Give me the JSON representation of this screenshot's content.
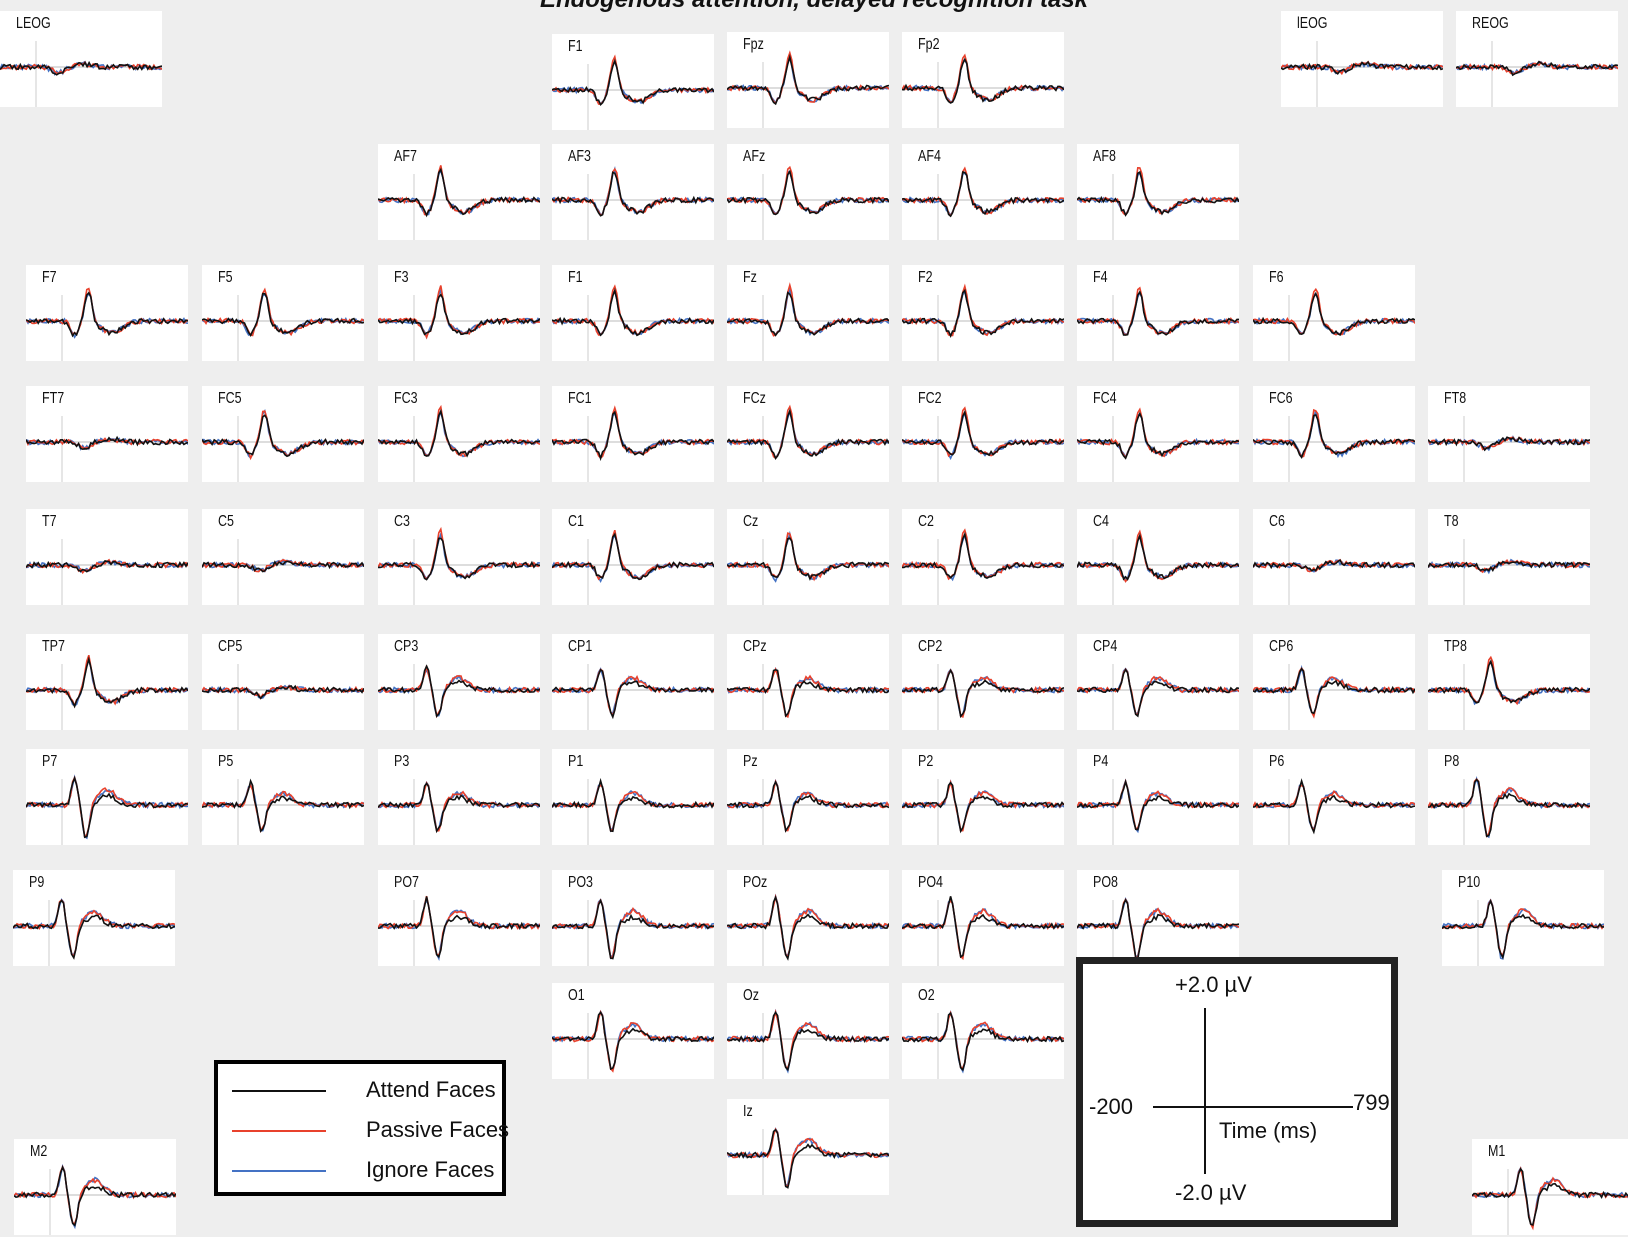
{
  "title": "Endogenous attention, delayed recognition task",
  "chart_data": {
    "type": "line",
    "x_range_ms": [
      -200,
      799
    ],
    "y_range_uV": [
      -2.0,
      2.0
    ],
    "series": [
      {
        "name": "Attend Faces",
        "color": "#111111"
      },
      {
        "name": "Passive Faces",
        "color": "#e8412c"
      },
      {
        "name": "Ignore Faces",
        "color": "#4472c4"
      }
    ],
    "channels": [
      "LEOG",
      "F1",
      "Fpz",
      "Fp2",
      "lEOG",
      "REOG",
      "AF7",
      "AF3",
      "AFz",
      "AF4",
      "AF8",
      "F7",
      "F5",
      "F3",
      "F1",
      "Fz",
      "F2",
      "F4",
      "F6",
      "FT7",
      "FC5",
      "FC3",
      "FC1",
      "FCz",
      "FC2",
      "FC4",
      "FC6",
      "FT8",
      "T7",
      "C5",
      "C3",
      "C1",
      "Cz",
      "C2",
      "C4",
      "C6",
      "T8",
      "TP7",
      "CP5",
      "CP3",
      "CP1",
      "CPz",
      "CP2",
      "CP4",
      "CP6",
      "TP8",
      "P7",
      "P5",
      "P3",
      "P1",
      "Pz",
      "P2",
      "P4",
      "P6",
      "P8",
      "P9",
      "PO7",
      "PO3",
      "POz",
      "PO4",
      "PO8",
      "P10",
      "O1",
      "Oz",
      "O2",
      "Iz",
      "M2",
      "M1"
    ]
  },
  "legend": {
    "items": [
      {
        "label": "Attend Faces",
        "color": "#111111"
      },
      {
        "label": "Passive Faces",
        "color": "#e8412c"
      },
      {
        "label": "Ignore Faces",
        "color": "#4472c4"
      }
    ]
  },
  "scale": {
    "y_top": "+2.0 µV",
    "y_bottom": "-2.0 µV",
    "x_left": "-200",
    "x_right": "799",
    "x_label": "Time (ms)"
  }
}
